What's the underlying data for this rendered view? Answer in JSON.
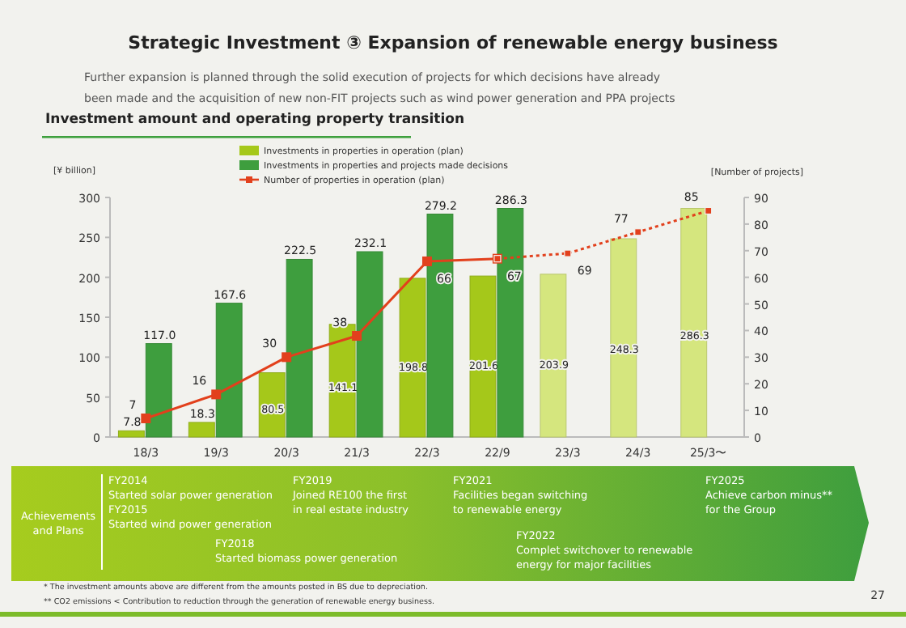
{
  "chart_data": {
    "type": "bar",
    "title": "Strategic Investment ③ Expansion of renewable energy business",
    "subtitle": "Further expansion is planned through the solid execution of projects for which decisions have already\nbeen made and the acquisition of new non-FIT projects such as wind power generation and PPA projects",
    "ylabel": "[¥ billion]",
    "y2label": "[Number of projects]",
    "categories": [
      "18/3",
      "19/3",
      "20/3",
      "21/3",
      "22/3",
      "22/9",
      "23/3",
      "24/3",
      "25/3〜"
    ],
    "series": [
      {
        "name": "Investments in properties in operation (plan)",
        "color": "#a5c81a",
        "colors": [
          "#a5c81a",
          "#a5c81a",
          "#a5c81a",
          "#a5c81a",
          "#a5c81a",
          "#a5c81a",
          "#d5e67e",
          "#d5e67e",
          "#d5e67e"
        ],
        "values": [
          7.8,
          18.3,
          80.5,
          141.1,
          198.8,
          201.6,
          203.9,
          248.3,
          286.3
        ],
        "value_labels": [
          "7.8",
          "18.3",
          "80.5",
          "141.1",
          "198.8",
          "201.6",
          "203.9",
          "248.3",
          "286.3"
        ]
      },
      {
        "name": "Investments in properties and projects made decisions",
        "color": "#3e9e3e",
        "values": [
          117.0,
          167.6,
          222.5,
          232.1,
          279.2,
          286.3,
          null,
          null,
          null
        ],
        "value_labels": [
          "117.0",
          "167.6",
          "222.5",
          "232.1",
          "279.2",
          "286.3",
          null,
          null,
          null
        ]
      },
      {
        "name": "Number of properties in operation (plan)",
        "type": "line",
        "axis": "y2",
        "color": "#e2401c",
        "marker": "square",
        "line_style": "solid",
        "values": [
          7,
          16,
          30,
          38,
          66,
          67,
          null,
          null,
          null
        ],
        "value_labels": [
          "7",
          "16",
          "30",
          "38",
          "66",
          "67",
          null,
          null,
          null
        ]
      },
      {
        "type": "line",
        "axis": "y2",
        "color": "#e2401c",
        "marker": "square",
        "line_style": "dotted",
        "values": [
          null,
          null,
          null,
          null,
          null,
          67,
          69,
          77,
          85
        ],
        "value_labels": [
          null,
          null,
          null,
          null,
          null,
          null,
          "69",
          "77",
          "85"
        ]
      }
    ],
    "ylim": [
      0,
      300
    ],
    "yticks": [
      0,
      50,
      100,
      150,
      200,
      250,
      300
    ],
    "y2lim": [
      0,
      90
    ],
    "y2ticks": [
      0,
      10,
      20,
      30,
      40,
      50,
      60,
      70,
      80,
      90
    ],
    "grid": false,
    "legend": "top left",
    "annotations": [
      "Investment amount and operating property transition",
      "Achievements\nand Plans",
      "FY2014\nStarted solar power generation\nFY2015\nStarted wind power generation",
      "FY2018\nStarted biomass power generation",
      "FY2019\nJoined RE100 the first\nin real estate industry",
      "FY2021\nFacilities began switching\nto renewable energy",
      "FY2022\nComplet switchover to renewable\nenergy for major facilities",
      "FY2025\nAchieve carbon minus**\nfor the Group",
      "*  The investment amounts above are different from the amounts posted in BS due to depreciation.",
      "** CO2 emissions < Contribution to reduction through the generation of renewable energy business.",
      "27"
    ]
  }
}
